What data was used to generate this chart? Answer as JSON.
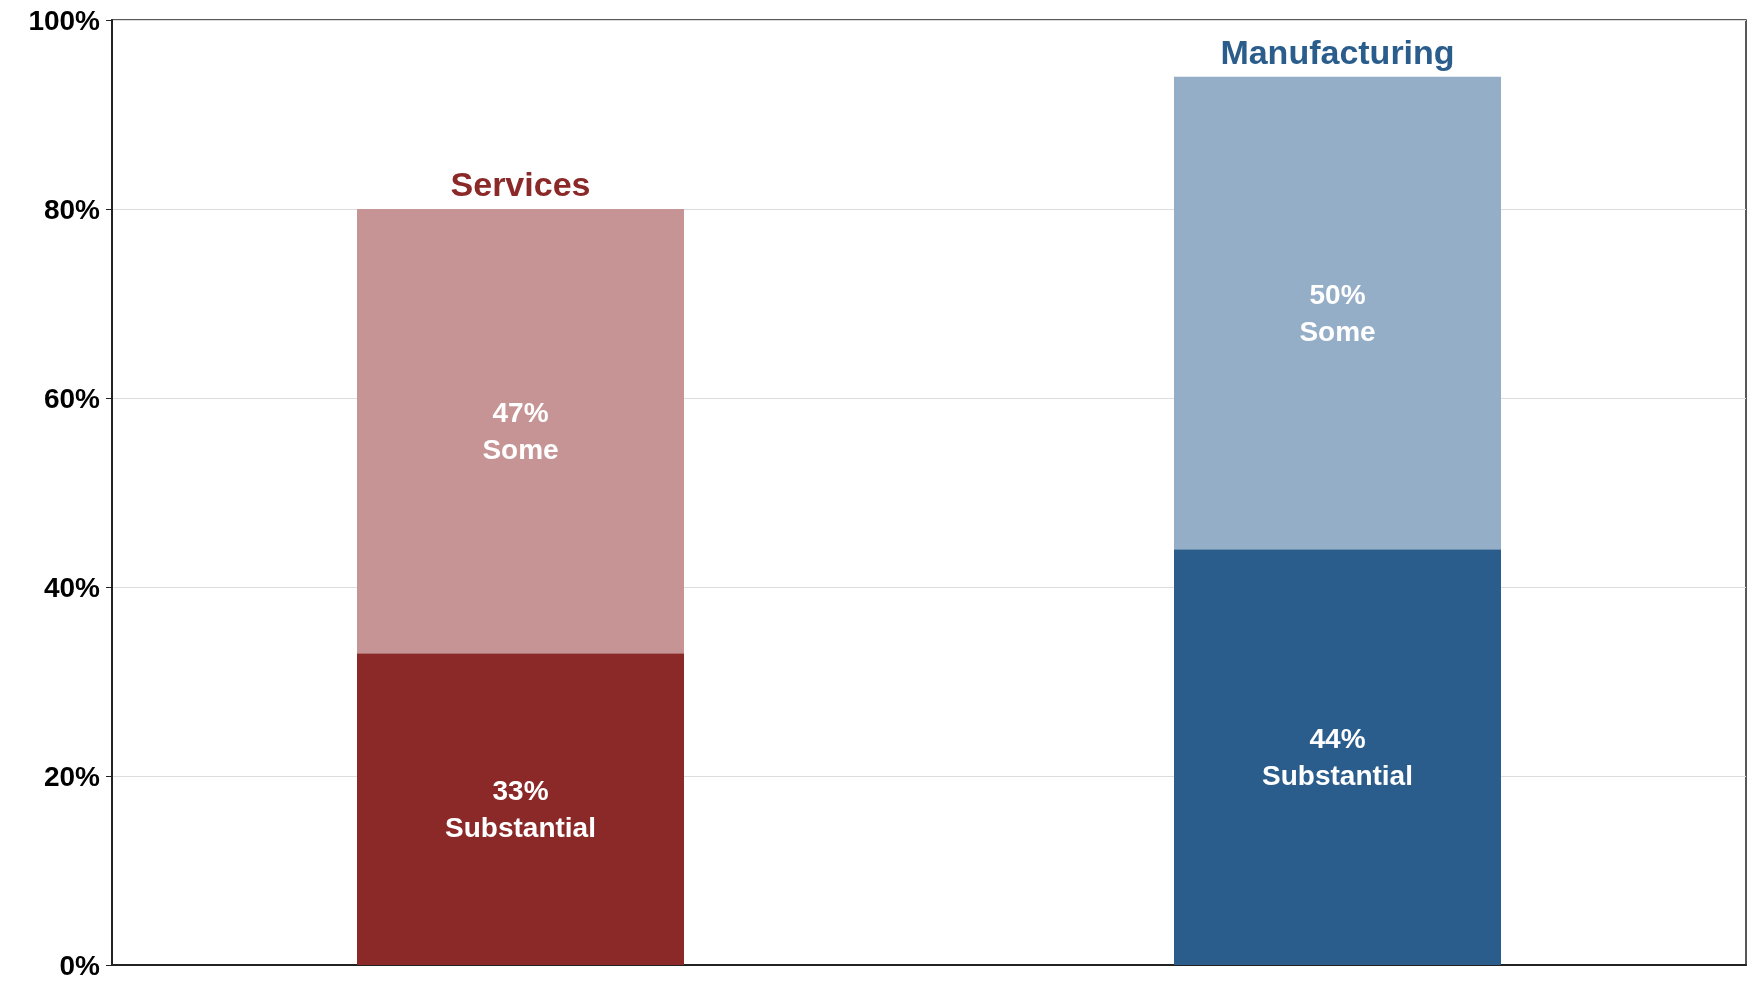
{
  "chart_data": {
    "type": "bar",
    "stacked": true,
    "categories": [
      "Services",
      "Manufacturing"
    ],
    "series": [
      {
        "name": "Substantial",
        "colors": [
          "#8b2929",
          "#2a5c8c"
        ],
        "values": [
          33,
          44
        ],
        "value_labels": [
          "33%",
          "44%"
        ]
      },
      {
        "name": "Some",
        "colors": [
          "#c69495",
          "#95aec8"
        ],
        "values": [
          47,
          50
        ],
        "value_labels": [
          "47%",
          "50%"
        ]
      }
    ],
    "ylim": [
      0,
      100
    ],
    "yticks": [
      {
        "value": 0,
        "label": "0%"
      },
      {
        "value": 20,
        "label": "20%"
      },
      {
        "value": 40,
        "label": "40%"
      },
      {
        "value": 60,
        "label": "60%"
      },
      {
        "value": 80,
        "label": "80%"
      },
      {
        "value": 100,
        "label": "100%"
      }
    ],
    "grid": "y",
    "legend": false
  }
}
